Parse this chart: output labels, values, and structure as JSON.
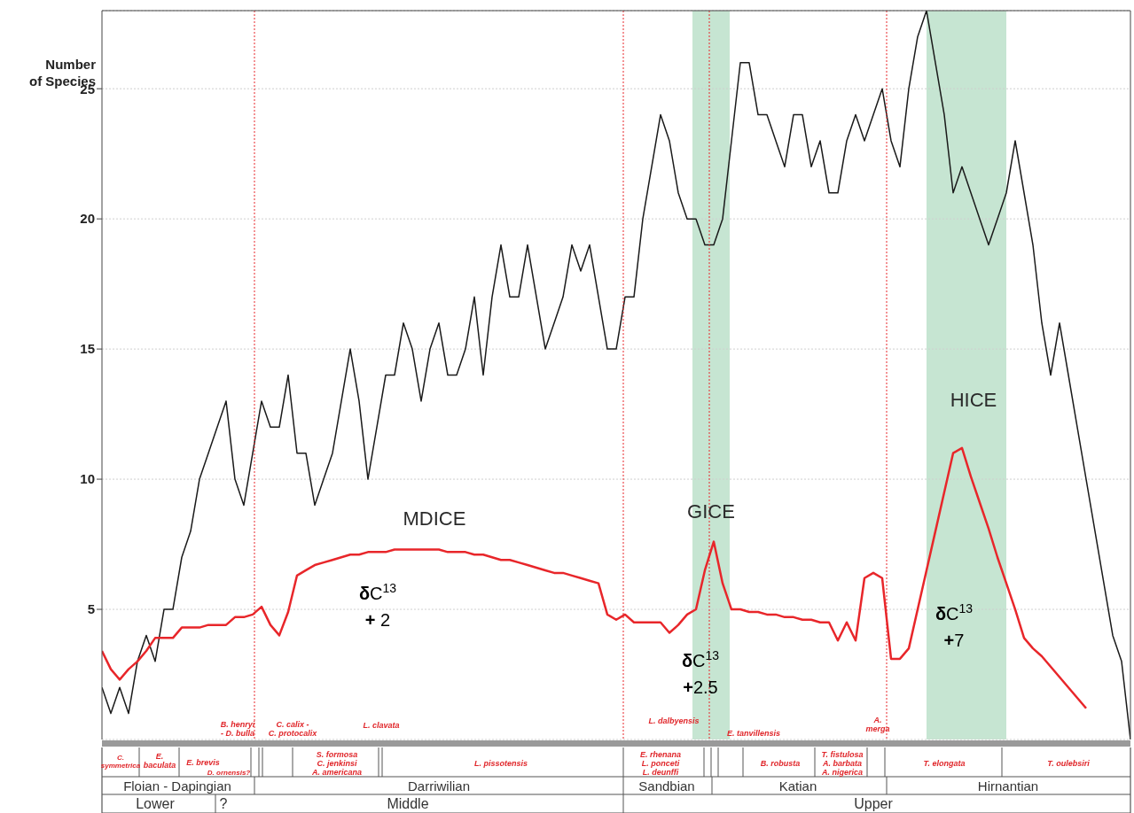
{
  "chart_data": {
    "type": "line",
    "ylabel": "Number\nof Species",
    "categories": [
      null,
      null,
      null,
      null,
      null,
      null,
      null,
      null,
      null,
      null,
      null,
      null,
      null,
      null,
      null,
      null,
      null,
      null,
      null,
      null,
      null,
      null,
      null,
      null,
      null,
      null,
      null,
      null,
      null,
      null,
      null,
      null,
      null,
      null,
      null,
      null,
      null,
      null,
      null,
      null,
      null,
      null,
      null,
      null,
      null,
      null,
      null,
      null,
      null,
      null,
      null,
      null,
      null,
      null,
      null,
      null,
      null,
      null,
      null,
      null,
      null,
      null,
      null,
      null,
      null,
      null,
      null,
      null,
      null,
      null,
      null,
      null,
      null,
      null,
      null,
      null,
      null,
      null,
      null,
      null,
      null,
      null,
      null,
      null,
      null,
      null,
      null,
      null,
      null,
      null,
      null,
      null,
      null,
      null,
      null,
      null,
      null,
      null,
      null,
      null,
      null,
      null,
      null,
      null,
      null,
      null,
      null,
      null,
      null,
      null,
      null,
      null,
      null,
      null,
      null,
      null,
      null
    ],
    "series": [
      {
        "color": "#1a1a1a",
        "values": [
          2,
          1,
          2,
          1,
          3,
          4,
          3,
          5,
          5,
          7,
          8,
          10,
          11,
          12,
          13,
          10,
          9,
          11,
          13,
          12,
          12,
          14,
          11,
          11,
          9,
          10,
          11,
          13,
          15,
          13,
          10,
          12,
          14,
          14,
          16,
          15,
          13,
          15,
          16,
          14,
          14,
          15,
          17,
          14,
          17,
          19,
          17,
          17,
          19,
          17,
          15,
          16,
          17,
          19,
          18,
          19,
          17,
          15,
          15,
          17,
          17,
          20,
          22,
          24,
          23,
          21,
          20,
          20,
          19,
          19,
          20,
          23,
          26,
          26,
          24,
          24,
          23,
          22,
          24,
          24,
          22,
          23,
          21,
          21,
          23,
          24,
          23,
          24,
          25,
          23,
          22,
          25,
          27,
          28,
          26,
          24,
          21,
          22,
          21,
          20,
          19,
          20,
          21,
          23,
          21,
          19,
          16,
          14,
          16,
          14,
          12,
          10,
          8,
          6,
          4,
          3,
          0
        ]
      },
      {
        "color": "#e8262a",
        "values": [
          3.4,
          2.7,
          2.3,
          2.7,
          3.0,
          3.4,
          3.9,
          3.9,
          3.9,
          4.3,
          4.3,
          4.3,
          4.4,
          4.4,
          4.4,
          4.7,
          4.7,
          4.8,
          5.1,
          4.4,
          4.0,
          4.9,
          6.3,
          6.5,
          6.7,
          6.8,
          6.9,
          7.0,
          7.1,
          7.1,
          7.2,
          7.2,
          7.2,
          7.3,
          7.3,
          7.3,
          7.3,
          7.3,
          7.3,
          7.2,
          7.2,
          7.2,
          7.1,
          7.1,
          7.0,
          6.9,
          6.9,
          6.8,
          6.7,
          6.6,
          6.5,
          6.4,
          6.4,
          6.3,
          6.2,
          6.1,
          6.0,
          4.8,
          4.6,
          4.8,
          4.5,
          4.5,
          4.5,
          4.5,
          4.1,
          4.4,
          4.8,
          5.0,
          6.5,
          7.6,
          6.0,
          5.0,
          5.0,
          4.9,
          4.9,
          4.8,
          4.8,
          4.7,
          4.7,
          4.6,
          4.6,
          4.5,
          4.5,
          3.8,
          4.5,
          3.8,
          6.2,
          6.4,
          6.2,
          3.1,
          3.1,
          3.5,
          5.0,
          6.5,
          8.0,
          9.5,
          11.0,
          11.2,
          10.1,
          9.1,
          8.1,
          7.0,
          6.0,
          5.0,
          3.9,
          3.5,
          3.2,
          2.8,
          2.4,
          2.0,
          1.6,
          1.2,
          null,
          null,
          null,
          null,
          null
        ]
      }
    ],
    "ylim": [
      0,
      28
    ],
    "yticks": [
      5,
      10,
      15,
      20,
      25
    ],
    "grid": "y",
    "tick_labels": "y",
    "line_style": "solid",
    "annotations": [
      "MDICE",
      "GICE",
      "HICE",
      "δC$^{13}$\n+ 2",
      "δC$^{13}$\n+2.5",
      "δC$^{13}$\n+7",
      "B. henryi\n- D. bulla",
      "C. calix -\nC. protocalix",
      "L. clavata",
      "L. dalbyensis",
      "E. tanvillensis",
      "A.\nmerga",
      "C.\nsymmetrica",
      "E.\nbaculata",
      "E. brevis",
      "D. ornensis?",
      "S. formosa\nC. jenkinsi\nA. americana",
      "L. pissotensis",
      "E. rhenana\nL. ponceti\nL. deunffi",
      "B. robusta",
      "T. fistulosa\nA. barbata\nA. nigerica",
      "T. elongata",
      "T. oulebsiri",
      "Floian - Dapingian",
      "Darriwilian",
      "Sandbian",
      "Katian",
      "Hirnantian",
      "Lower",
      "?",
      "Middle",
      "Upper"
    ]
  }
}
